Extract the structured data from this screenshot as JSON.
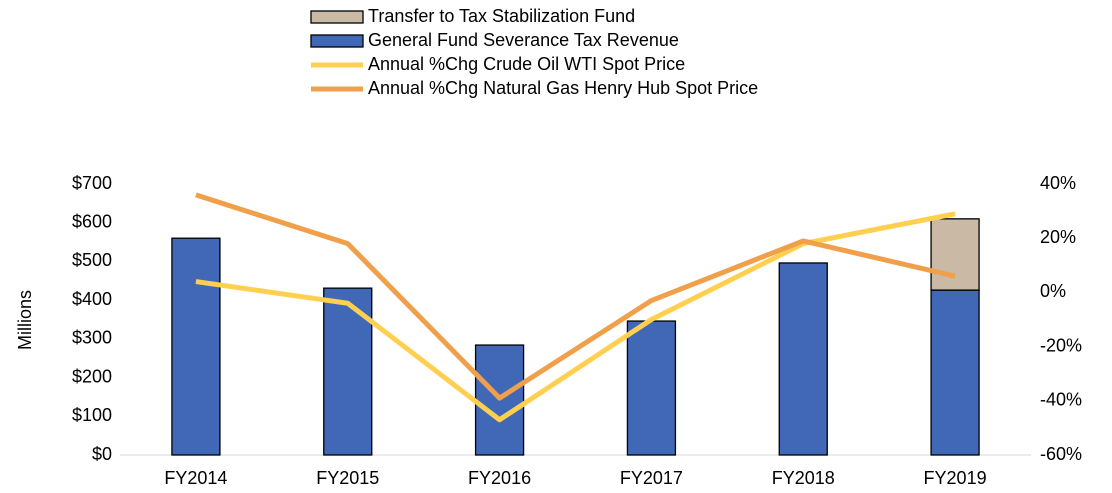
{
  "chart_data": {
    "type": "bar",
    "categories": [
      "FY2014",
      "FY2015",
      "FY2016",
      "FY2017",
      "FY2018",
      "FY2019"
    ],
    "series": [
      {
        "name": "Transfer to Tax Stabilization Fund",
        "type": "bar",
        "color": "#c9b9a5",
        "values": [
          0,
          0,
          0,
          0,
          0,
          184
        ]
      },
      {
        "name": "General Fund Severance Tax Revenue",
        "type": "bar",
        "color": "#4068b7",
        "values": [
          560,
          431,
          284,
          346,
          496,
          426
        ]
      },
      {
        "name": "Annual %Chg Crude Oil WTI Spot Price",
        "type": "line",
        "axis": "y2",
        "color": "#ffd04f",
        "values": [
          4,
          -4,
          -47,
          -10,
          18,
          29
        ]
      },
      {
        "name": "Annual %Chg Natural Gas Henry Hub Spot Price",
        "type": "line",
        "axis": "y2",
        "color": "#f0a04a",
        "values": [
          36,
          18,
          -39,
          -3,
          19,
          6
        ]
      }
    ],
    "ylabel": "Millions",
    "ylim": [
      0,
      700
    ],
    "yticks": [
      {
        "value": 0,
        "label": "$0"
      },
      {
        "value": 100,
        "label": "$100"
      },
      {
        "value": 200,
        "label": "$200"
      },
      {
        "value": 300,
        "label": "$300"
      },
      {
        "value": 400,
        "label": "$400"
      },
      {
        "value": 500,
        "label": "$500"
      },
      {
        "value": 600,
        "label": "$600"
      },
      {
        "value": 700,
        "label": "$700"
      }
    ],
    "y2lim": [
      -60,
      40
    ],
    "y2ticks": [
      {
        "value": -60,
        "label": "-60%"
      },
      {
        "value": -40,
        "label": "-40%"
      },
      {
        "value": -20,
        "label": "-20%"
      },
      {
        "value": 0,
        "label": "0%"
      },
      {
        "value": 20,
        "label": "20%"
      },
      {
        "value": 40,
        "label": "40%"
      }
    ],
    "legend": "top"
  }
}
